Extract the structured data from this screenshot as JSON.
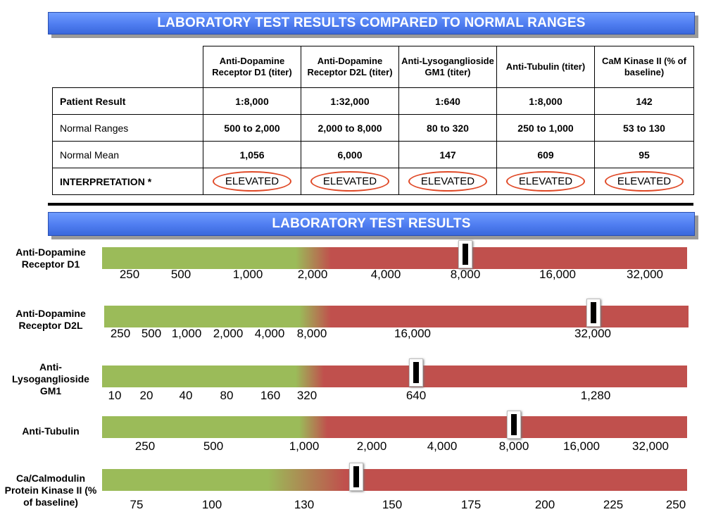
{
  "top_title": "LABORATORY TEST RESULTS COMPARED TO NORMAL RANGES",
  "table": {
    "columns": [
      "Anti-Dopamine Receptor D1  (titer)",
      "Anti-Dopamine Receptor D2L (titer)",
      "Anti-Lysoganglioside GM1  (titer)",
      "Anti-Tubulin (titer)",
      "CaM Kinase II (% of baseline)"
    ],
    "rows": [
      {
        "label": "Patient Result",
        "values": [
          "1:8,000",
          "1:32,000",
          "1:640",
          "1:8,000",
          "142"
        ]
      },
      {
        "label": "Normal Ranges",
        "values": [
          "500 to 2,000",
          "2,000 to 8,000",
          "80 to 320",
          "250 to 1,000",
          "53 to 130"
        ]
      },
      {
        "label": "Normal Mean",
        "values": [
          "1,056",
          "6,000",
          "147",
          "609",
          "95"
        ]
      },
      {
        "label": "INTERPRETATION *",
        "values": [
          "ELEVATED",
          "ELEVATED",
          "ELEVATED",
          "ELEVATED",
          "ELEVATED"
        ]
      }
    ]
  },
  "bottom_title": "LABORATORY TEST RESULTS",
  "colors": {
    "normal": "#9bbb59",
    "elevated": "#c0504d",
    "banner": "#4f7df0",
    "circle": "#e04a28"
  },
  "gauges": [
    {
      "label": "Anti-Dopamine Receptor D1",
      "ticks": [
        "250",
        "500",
        "1,000",
        "2,000",
        "4,000",
        "8,000",
        "16,000",
        "32,000"
      ],
      "normal_upper_limit": "2,000",
      "patient_value": "8,000"
    },
    {
      "label": "Anti-Dopamine Receptor D2L",
      "ticks": [
        "250",
        "500",
        "1,000",
        "2,000",
        "4,000",
        "8,000",
        "16,000",
        "32,000"
      ],
      "normal_upper_limit": "8,000",
      "patient_value": "32,000"
    },
    {
      "label": "Anti-Lysoganglioside GM1",
      "ticks": [
        "10",
        "20",
        "40",
        "80",
        "160",
        "320",
        "640",
        "1,280"
      ],
      "normal_upper_limit": "320",
      "patient_value": "640"
    },
    {
      "label": "Anti-Tubulin",
      "ticks": [
        "250",
        "500",
        "1,000",
        "2,000",
        "4,000",
        "8,000",
        "16,000",
        "32,000"
      ],
      "normal_upper_limit": "1,000",
      "patient_value": "8,000"
    },
    {
      "label": "Ca/Calmodulin Protein Kinase II (% of baseline)",
      "ticks": [
        "75",
        "100",
        "130",
        "150",
        "175",
        "200",
        "225",
        "250"
      ],
      "normal_upper_limit": "130",
      "patient_value": "142"
    }
  ]
}
